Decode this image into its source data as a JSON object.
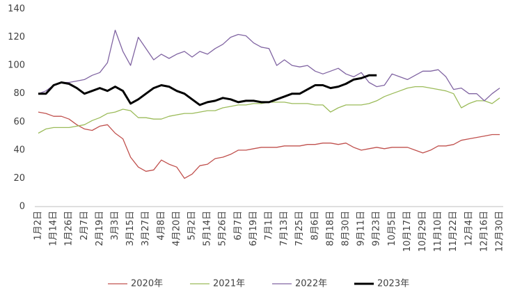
{
  "chart_data": {
    "type": "line",
    "categories": [
      "1月2日",
      null,
      "1月14日",
      null,
      "1月26日",
      null,
      "2月7日",
      null,
      "2月19日",
      null,
      "3月3日",
      null,
      "3月15日",
      null,
      "3月27日",
      null,
      "4月8日",
      null,
      "4月20日",
      null,
      "5月2日",
      null,
      "5月14日",
      null,
      "5月26日",
      null,
      "6月7日",
      null,
      "6月19日",
      null,
      "7月1日",
      null,
      "7月13日",
      null,
      "7月25日",
      null,
      "8月6日",
      null,
      "8月18日",
      null,
      "8月30日",
      null,
      "9月11日",
      null,
      "9月23日",
      null,
      "10月5日",
      null,
      "10月17日",
      null,
      "10月29日",
      null,
      "11月10日",
      null,
      "11月22日",
      null,
      "12月4日",
      null,
      "12月16日",
      null,
      "12月30日"
    ],
    "series": [
      {
        "name": "2020年",
        "color": "#c0504d",
        "width": 1.3,
        "values": [
          67,
          66,
          64,
          64,
          62,
          58,
          55,
          54,
          57,
          58,
          52,
          48,
          35,
          28,
          25,
          26,
          33,
          30,
          28,
          20,
          23,
          29,
          30,
          34,
          35,
          37,
          40,
          40,
          41,
          42,
          42,
          42,
          43,
          43,
          43,
          44,
          44,
          45,
          45,
          44,
          45,
          42,
          40,
          41,
          42,
          41,
          42,
          42,
          42,
          40,
          38,
          40,
          43,
          43,
          44,
          47,
          48,
          49,
          50,
          51,
          51
        ]
      },
      {
        "name": "2021年",
        "color": "#9bbb59",
        "width": 1.3,
        "values": [
          52,
          55,
          56,
          56,
          56,
          57,
          58,
          61,
          63,
          66,
          67,
          69,
          68,
          63,
          63,
          62,
          62,
          64,
          65,
          66,
          66,
          67,
          68,
          68,
          70,
          71,
          72,
          72,
          73,
          73,
          74,
          74,
          74,
          73,
          73,
          73,
          72,
          72,
          67,
          70,
          72,
          72,
          72,
          73,
          75,
          78,
          80,
          82,
          84,
          85,
          85,
          84,
          83,
          82,
          80,
          70,
          73,
          75,
          75,
          73,
          77
        ]
      },
      {
        "name": "2022年",
        "color": "#8064a2",
        "width": 1.3,
        "values": [
          80,
          82,
          86,
          88,
          88,
          89,
          90,
          93,
          95,
          102,
          125,
          110,
          100,
          120,
          112,
          104,
          108,
          105,
          108,
          110,
          106,
          110,
          108,
          112,
          115,
          120,
          122,
          121,
          116,
          113,
          112,
          100,
          104,
          100,
          99,
          100,
          96,
          94,
          96,
          98,
          94,
          92,
          95,
          88,
          85,
          86,
          94,
          92,
          90,
          93,
          96,
          96,
          97,
          92,
          83,
          84,
          80,
          80,
          75,
          80,
          84
        ]
      },
      {
        "name": "2023年",
        "color": "#000000",
        "width": 3,
        "values": [
          80,
          80,
          86,
          88,
          87,
          84,
          80,
          82,
          84,
          82,
          85,
          82,
          73,
          76,
          80,
          84,
          86,
          85,
          82,
          80,
          76,
          72,
          74,
          75,
          77,
          76,
          74,
          75,
          75,
          74,
          74,
          76,
          78,
          80,
          80,
          83,
          86,
          86,
          84,
          85,
          87,
          90,
          91,
          93,
          93,
          null,
          null,
          null,
          null,
          null,
          null,
          null,
          null,
          null,
          null,
          null,
          null,
          null,
          null,
          null,
          null
        ]
      }
    ],
    "ylim": [
      0,
      140
    ],
    "yticks": [
      0,
      20,
      40,
      60,
      80,
      100,
      120,
      140
    ],
    "grid": false,
    "legend": "bottom"
  }
}
